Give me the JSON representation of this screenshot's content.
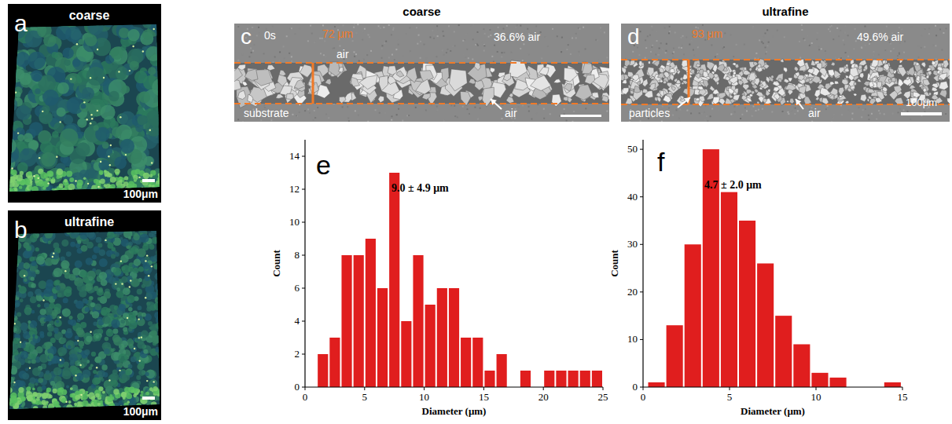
{
  "panels": {
    "a": {
      "letter": "a",
      "label": "coarse",
      "scale_bar": "100μm"
    },
    "b": {
      "letter": "b",
      "label": "ultrafine",
      "scale_bar": "100μm"
    },
    "c": {
      "letter": "c",
      "title": "coarse",
      "time": "0s",
      "air_top": "air",
      "thickness": "72 μm",
      "air_fraction": "36.6% air",
      "substrate": "substrate",
      "air_arrow": "air"
    },
    "d": {
      "letter": "d",
      "title": "ultrafine",
      "thickness": "93 μm",
      "air_fraction": "49.6% air",
      "particles": "particles",
      "air_arrow": "air",
      "scale_bar": "100μm"
    },
    "e": {
      "letter": "e"
    },
    "f": {
      "letter": "f"
    }
  },
  "chart_data": [
    {
      "type": "histogram",
      "annotation": "9.0  ± 4.9 μm",
      "x_label": "Diameter (μm)",
      "y_label": "Count",
      "bins": [
        1,
        2,
        3,
        4,
        5,
        6,
        7,
        8,
        9,
        10,
        11,
        12,
        13,
        14,
        15,
        16,
        17,
        18,
        19,
        20,
        21,
        22,
        23,
        24,
        25
      ],
      "values": [
        2,
        3,
        8,
        8,
        9,
        6,
        13,
        4,
        8,
        5,
        6,
        6,
        3,
        3,
        1,
        2,
        0,
        1,
        0,
        1,
        1,
        1,
        1,
        1
      ],
      "color": "#e01e1e",
      "xlim": [
        0,
        25
      ],
      "xticks": [
        0,
        5,
        10,
        15,
        20,
        25
      ],
      "ylim": [
        0,
        15
      ],
      "yticks": [
        0,
        2,
        4,
        6,
        8,
        10,
        12,
        14
      ],
      "grid": false
    },
    {
      "type": "histogram",
      "annotation": "4.7  ± 2.0 μm",
      "x_label": "Diameter (μm)",
      "y_label": "Count",
      "bins": [
        0.25,
        1.3,
        2.35,
        3.4,
        4.45,
        5.5,
        6.55,
        7.6,
        8.65,
        9.7,
        10.75,
        11.8,
        12.85,
        13.9,
        14.95
      ],
      "values": [
        1,
        13,
        30,
        50,
        41,
        35,
        26,
        15,
        9,
        3,
        2,
        0,
        0,
        1
      ],
      "color": "#e01e1e",
      "xlim": [
        0,
        15
      ],
      "xticks": [
        0,
        5,
        10,
        15
      ],
      "ylim": [
        0,
        52
      ],
      "yticks": [
        0,
        10,
        20,
        30,
        40,
        50
      ],
      "grid": false
    }
  ]
}
